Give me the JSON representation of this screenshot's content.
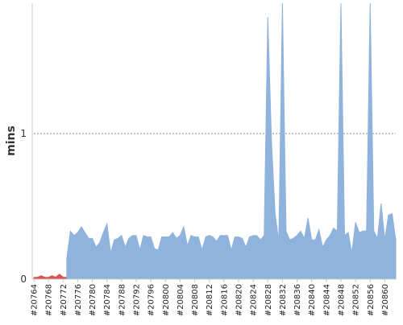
{
  "chart_data": {
    "type": "area",
    "title": "",
    "xlabel": "",
    "ylabel": "mins",
    "ylim": [
      0,
      1.9
    ],
    "y_ticks": [
      "0",
      "1"
    ],
    "reference_line": {
      "y": 1,
      "style": "dotted"
    },
    "x_tick_labels": [
      "#20764",
      "#20768",
      "#20772",
      "#20776",
      "#20780",
      "#20784",
      "#20788",
      "#20792",
      "#20796",
      "#20800",
      "#20804",
      "#20808",
      "#20812",
      "#20816",
      "#20820",
      "#20824",
      "#20828",
      "#20832",
      "#20836",
      "#20840",
      "#20844",
      "#20848",
      "#20852",
      "#20856",
      "#20860"
    ],
    "series": [
      {
        "color": "#d9534f",
        "builds": [
          20764,
          20765,
          20766,
          20767,
          20768,
          20769,
          20770,
          20771,
          20772,
          20773
        ],
        "values": [
          0.01,
          0.01,
          0.02,
          0.01,
          0.01,
          0.02,
          0.01,
          0.03,
          0.01,
          0.01
        ]
      },
      {
        "color": "#8fb3dc",
        "builds": [
          20773,
          20774,
          20775,
          20776,
          20777,
          20778,
          20779,
          20780,
          20781,
          20782,
          20783,
          20784,
          20785,
          20786,
          20787,
          20788,
          20789,
          20790,
          20791,
          20792,
          20793,
          20794,
          20795,
          20796,
          20797,
          20798,
          20799,
          20800,
          20801,
          20802,
          20803,
          20804,
          20805,
          20806,
          20807,
          20808,
          20809,
          20810,
          20811,
          20812,
          20813,
          20814,
          20815,
          20816,
          20817,
          20818,
          20819,
          20820,
          20821,
          20822,
          20823,
          20824,
          20825,
          20826,
          20827,
          20828,
          20829,
          20830,
          20831,
          20832,
          20833,
          20834,
          20835,
          20836,
          20837,
          20838,
          20839,
          20840,
          20841,
          20842,
          20843,
          20844,
          20845,
          20846,
          20847,
          20848,
          20849,
          20850,
          20851,
          20852,
          20853,
          20854,
          20855,
          20856,
          20857,
          20858,
          20859,
          20860,
          20861,
          20862,
          20863
        ],
        "values": [
          0.14,
          0.33,
          0.3,
          0.32,
          0.36,
          0.32,
          0.28,
          0.28,
          0.22,
          0.25,
          0.32,
          0.38,
          0.18,
          0.27,
          0.28,
          0.3,
          0.22,
          0.28,
          0.3,
          0.3,
          0.2,
          0.3,
          0.29,
          0.29,
          0.21,
          0.2,
          0.29,
          0.29,
          0.29,
          0.32,
          0.28,
          0.3,
          0.36,
          0.23,
          0.3,
          0.29,
          0.29,
          0.2,
          0.29,
          0.3,
          0.29,
          0.26,
          0.3,
          0.3,
          0.3,
          0.2,
          0.29,
          0.29,
          0.28,
          0.22,
          0.29,
          0.3,
          0.3,
          0.27,
          0.3,
          1.8,
          0.95,
          0.45,
          0.26,
          1.9,
          0.33,
          0.27,
          0.28,
          0.3,
          0.33,
          0.28,
          0.42,
          0.27,
          0.27,
          0.34,
          0.22,
          0.27,
          0.3,
          0.35,
          0.33,
          1.9,
          0.3,
          0.32,
          0.18,
          0.39,
          0.32,
          0.33,
          0.33,
          1.9,
          0.33,
          0.28,
          0.52,
          0.27,
          0.44,
          0.45,
          0.27
        ]
      }
    ]
  }
}
